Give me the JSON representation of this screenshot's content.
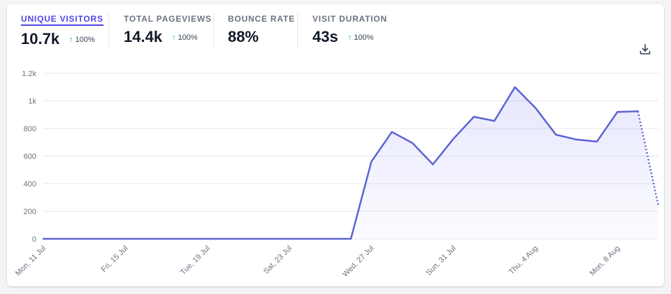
{
  "stats": [
    {
      "label": "Unique visitors",
      "value": "10.7k",
      "change": "100%",
      "active": true
    },
    {
      "label": "Total pageviews",
      "value": "14.4k",
      "change": "100%",
      "active": false
    },
    {
      "label": "Bounce rate",
      "value": "88%",
      "change": "",
      "active": false
    },
    {
      "label": "Visit duration",
      "value": "43s",
      "change": "100%",
      "active": false
    }
  ],
  "icons": {
    "change_up": "arrow-up-icon",
    "download": "download-icon"
  },
  "colors": {
    "accent": "#4f46e5",
    "line": "#5b63d3",
    "up": "#10b981"
  },
  "chart_data": {
    "type": "area",
    "title": "",
    "xlabel": "",
    "ylabel": "",
    "ylim": [
      0,
      1200
    ],
    "y_ticks": [
      0,
      200,
      400,
      600,
      800,
      1000,
      1200
    ],
    "y_tick_labels": [
      "0",
      "200",
      "400",
      "600",
      "800",
      "1k",
      "1.2k"
    ],
    "x_tick_labels": [
      "Mon, 11 Jul",
      "Fri, 15 Jul",
      "Tue, 19 Jul",
      "Sat, 23 Jul",
      "Wed, 27 Jul",
      "Sun, 31 Jul",
      "Thu, 4 Aug",
      "Mon, 8 Aug"
    ],
    "x_tick_index": [
      0,
      4,
      8,
      12,
      16,
      20,
      24,
      28
    ],
    "grid": true,
    "last_point_incomplete": true,
    "x": [
      "11 Jul",
      "12 Jul",
      "13 Jul",
      "14 Jul",
      "15 Jul",
      "16 Jul",
      "17 Jul",
      "18 Jul",
      "19 Jul",
      "20 Jul",
      "21 Jul",
      "22 Jul",
      "23 Jul",
      "24 Jul",
      "25 Jul",
      "26 Jul",
      "27 Jul",
      "28 Jul",
      "29 Jul",
      "30 Jul",
      "31 Jul",
      "1 Aug",
      "2 Aug",
      "3 Aug",
      "4 Aug",
      "5 Aug",
      "6 Aug",
      "7 Aug",
      "8 Aug",
      "9 Aug",
      "10 Aug"
    ],
    "series": [
      {
        "name": "",
        "values": [
          0,
          0,
          0,
          0,
          0,
          0,
          0,
          0,
          0,
          0,
          0,
          0,
          0,
          0,
          0,
          0,
          560,
          775,
          695,
          540,
          725,
          885,
          855,
          1100,
          950,
          755,
          720,
          705,
          920,
          925,
          240
        ]
      }
    ]
  }
}
